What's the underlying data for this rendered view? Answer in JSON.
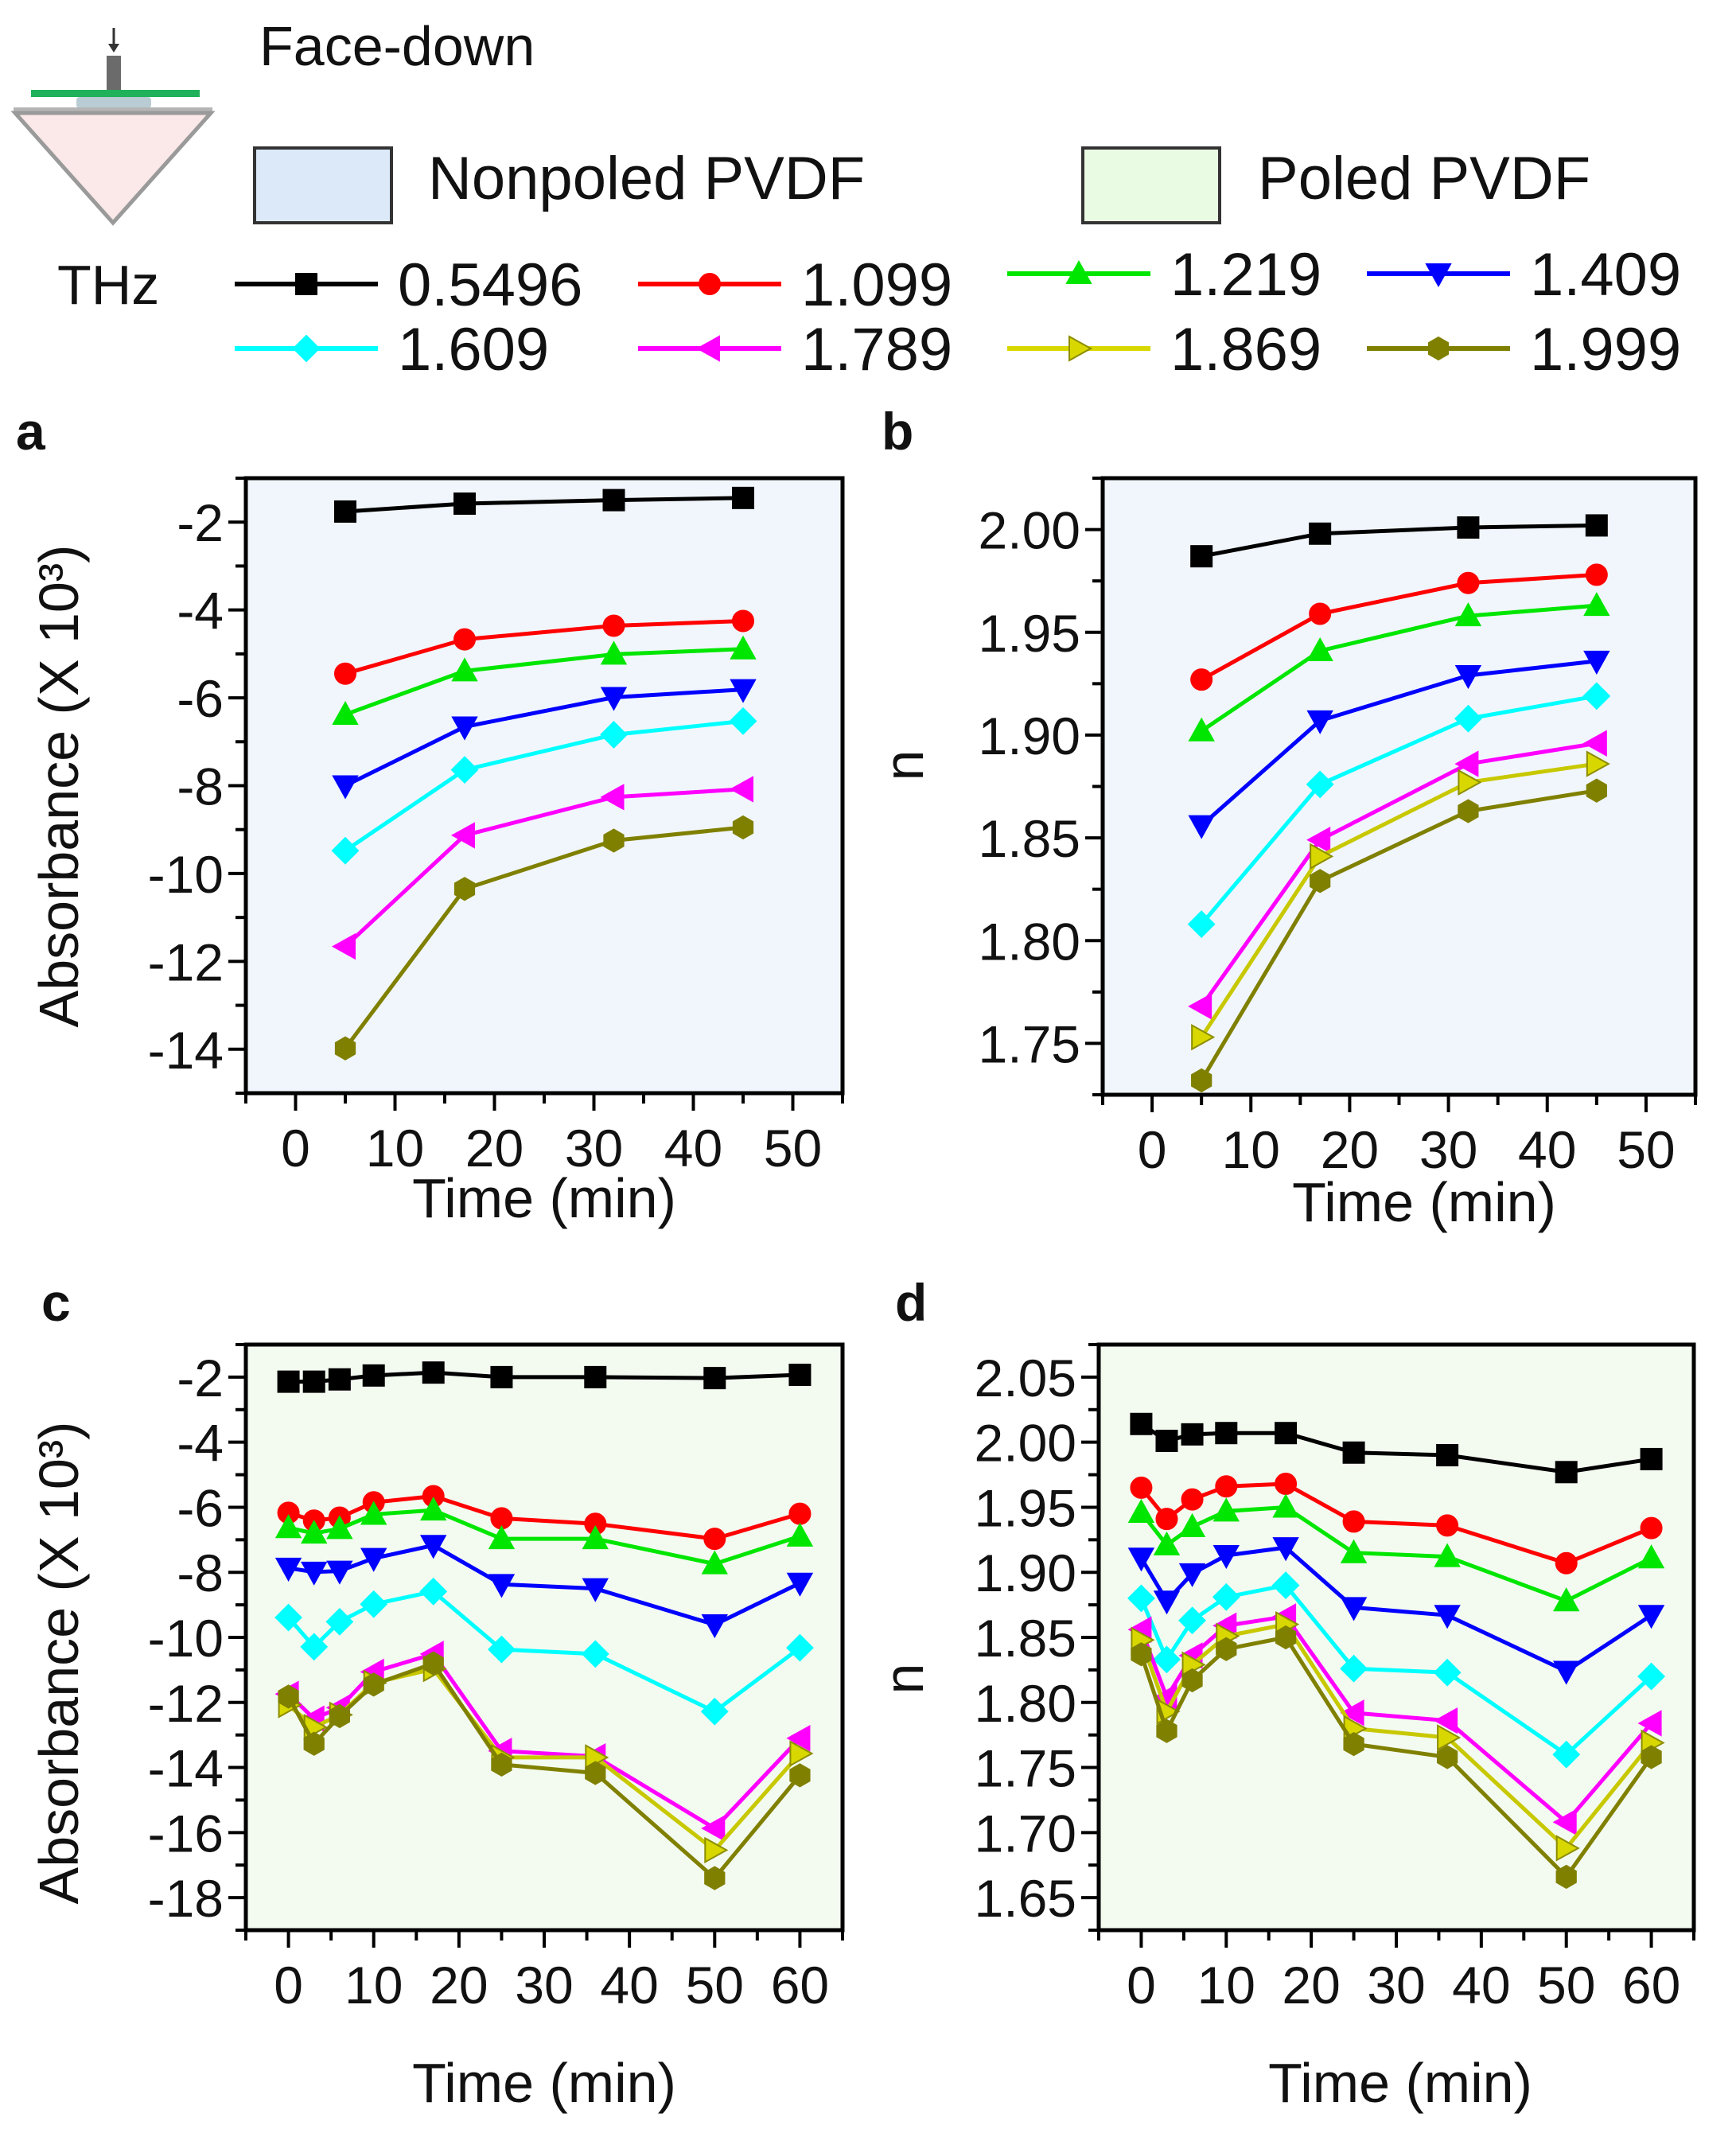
{
  "header": {
    "face_label": "Face-down",
    "unit_label": "THz"
  },
  "samples": [
    {
      "label": "Nonpoled PVDF",
      "color": "#dbe9f9"
    },
    {
      "label": "Poled PVDF",
      "color": "#eafbe4"
    }
  ],
  "legend": [
    {
      "name": "0.5496",
      "color": "#000000",
      "marker": "square"
    },
    {
      "name": "1.099",
      "color": "#ff0000",
      "marker": "circle"
    },
    {
      "name": "1.219",
      "color": "#00e600",
      "marker": "triangle-up"
    },
    {
      "name": "1.409",
      "color": "#0000ff",
      "marker": "triangle-down"
    },
    {
      "name": "1.609",
      "color": "#00ffff",
      "marker": "diamond"
    },
    {
      "name": "1.789",
      "color": "#ff00ff",
      "marker": "triangle-left"
    },
    {
      "name": "1.869",
      "color": "#d8d800",
      "marker": "triangle-right"
    },
    {
      "name": "1.999",
      "color": "#808000",
      "marker": "hexagon"
    }
  ],
  "chart_data": [
    {
      "panel": "a",
      "type": "line",
      "sample": "Nonpoled PVDF",
      "background": "#f1f6fd",
      "xlabel": "Time (min)",
      "ylabel": "Absorbance (X 10³)",
      "xlim": [
        -5,
        55
      ],
      "ylim": [
        -15,
        -1
      ],
      "xticks": [
        0,
        10,
        20,
        30,
        40,
        50
      ],
      "xtick_labels": [
        "0",
        "10",
        "20",
        "30",
        "40",
        "50"
      ],
      "yticks": [
        -2,
        -4,
        -6,
        -8,
        -10,
        -12,
        -14
      ],
      "ytick_labels": [
        "-2",
        "-4",
        "-6",
        "-8",
        "-10",
        "-12",
        "-14"
      ],
      "grid": false,
      "x": [
        5,
        17,
        32,
        45
      ],
      "series": [
        {
          "name": "0.5496",
          "values": [
            -1.76,
            -1.58,
            -1.5,
            -1.45
          ]
        },
        {
          "name": "1.099",
          "values": [
            -5.45,
            -4.67,
            -4.36,
            -4.25
          ]
        },
        {
          "name": "1.219",
          "values": [
            -6.38,
            -5.39,
            -5.01,
            -4.89
          ]
        },
        {
          "name": "1.409",
          "values": [
            -8.0,
            -6.66,
            -5.99,
            -5.81
          ]
        },
        {
          "name": "1.609",
          "values": [
            -9.48,
            -7.64,
            -6.84,
            -6.53
          ]
        },
        {
          "name": "1.789",
          "values": [
            -11.66,
            -9.13,
            -8.26,
            -8.08
          ]
        },
        {
          "name": "1.999",
          "values": [
            -13.98,
            -10.35,
            -9.25,
            -8.95
          ]
        }
      ]
    },
    {
      "panel": "b",
      "type": "line",
      "sample": "Nonpoled PVDF",
      "background": "#f1f6fd",
      "xlabel": "Time (min)",
      "ylabel": "n",
      "xlim": [
        -5,
        55
      ],
      "ylim": [
        1.725,
        2.025
      ],
      "xticks": [
        0,
        10,
        20,
        30,
        40,
        50
      ],
      "xtick_labels": [
        "0",
        "10",
        "20",
        "30",
        "40",
        "50"
      ],
      "yticks": [
        1.75,
        1.8,
        1.85,
        1.9,
        1.95,
        2.0
      ],
      "ytick_labels": [
        "1.75",
        "1.80",
        "1.85",
        "1.90",
        "1.95",
        "2.00"
      ],
      "grid": false,
      "x": [
        5,
        17,
        32,
        45
      ],
      "series": [
        {
          "name": "0.5496",
          "values": [
            1.987,
            1.998,
            2.001,
            2.002
          ]
        },
        {
          "name": "1.099",
          "values": [
            1.927,
            1.959,
            1.974,
            1.978
          ]
        },
        {
          "name": "1.219",
          "values": [
            1.902,
            1.941,
            1.958,
            1.963
          ]
        },
        {
          "name": "1.409",
          "values": [
            1.856,
            1.907,
            1.929,
            1.936
          ]
        },
        {
          "name": "1.609",
          "values": [
            1.808,
            1.876,
            1.908,
            1.919
          ]
        },
        {
          "name": "1.789",
          "values": [
            1.768,
            1.849,
            1.886,
            1.896
          ]
        },
        {
          "name": "1.869",
          "values": [
            1.753,
            1.841,
            1.877,
            1.886
          ]
        },
        {
          "name": "1.999",
          "values": [
            1.732,
            1.829,
            1.863,
            1.873
          ]
        }
      ]
    },
    {
      "panel": "c",
      "type": "line",
      "sample": "Poled PVDF",
      "background": "#f3faf0",
      "xlabel": "Time (min)",
      "ylabel": "Absorbance (X 10³)",
      "xlim": [
        -5,
        65
      ],
      "ylim": [
        -19,
        -1
      ],
      "xticks": [
        0,
        10,
        20,
        30,
        40,
        50,
        60
      ],
      "xtick_labels": [
        "0",
        "10",
        "20",
        "30",
        "40",
        "50",
        "60"
      ],
      "yticks": [
        -2,
        -4,
        -6,
        -8,
        -10,
        -12,
        -14,
        -16,
        -18
      ],
      "ytick_labels": [
        "-2",
        "-4",
        "-6",
        "-8",
        "-10",
        "-12",
        "-14",
        "-16",
        "-18"
      ],
      "grid": false,
      "x": [
        0,
        3,
        6,
        10,
        17,
        25,
        36,
        50,
        60
      ],
      "series": [
        {
          "name": "0.5496",
          "values": [
            -2.14,
            -2.14,
            -2.07,
            -1.95,
            -1.86,
            -2.0,
            -2.0,
            -2.03,
            -1.93
          ]
        },
        {
          "name": "1.099",
          "values": [
            -6.17,
            -6.41,
            -6.32,
            -5.85,
            -5.66,
            -6.34,
            -6.51,
            -6.97,
            -6.2
          ]
        },
        {
          "name": "1.219",
          "values": [
            -6.63,
            -6.8,
            -6.66,
            -6.22,
            -6.09,
            -6.97,
            -6.97,
            -7.74,
            -6.89
          ]
        },
        {
          "name": "1.409",
          "values": [
            -7.87,
            -7.99,
            -7.96,
            -7.57,
            -7.17,
            -8.37,
            -8.5,
            -9.61,
            -8.33
          ]
        },
        {
          "name": "1.609",
          "values": [
            -9.39,
            -10.29,
            -9.52,
            -8.98,
            -8.59,
            -10.37,
            -10.51,
            -12.28,
            -10.32
          ]
        },
        {
          "name": "1.789",
          "values": [
            -11.74,
            -12.5,
            -12.16,
            -11.06,
            -10.51,
            -13.49,
            -13.66,
            -15.87,
            -13.1
          ]
        },
        {
          "name": "1.869",
          "values": [
            -12.08,
            -12.76,
            -12.38,
            -11.4,
            -10.97,
            -13.69,
            -13.69,
            -16.54,
            -13.57
          ]
        },
        {
          "name": "1.999",
          "values": [
            -11.82,
            -13.27,
            -12.42,
            -11.45,
            -10.8,
            -13.91,
            -14.17,
            -17.4,
            -14.24
          ]
        }
      ]
    },
    {
      "panel": "d",
      "type": "line",
      "sample": "Poled PVDF",
      "background": "#f3faf0",
      "xlabel": "Time (min)",
      "ylabel": "n",
      "xlim": [
        -5,
        65
      ],
      "ylim": [
        1.625,
        2.075
      ],
      "xticks": [
        0,
        10,
        20,
        30,
        40,
        50,
        60
      ],
      "xtick_labels": [
        "0",
        "10",
        "20",
        "30",
        "40",
        "50",
        "60"
      ],
      "yticks": [
        1.65,
        1.7,
        1.75,
        1.8,
        1.85,
        1.9,
        1.95,
        2.0,
        2.05
      ],
      "ytick_labels": [
        "1.65",
        "1.70",
        "1.75",
        "1.80",
        "1.85",
        "1.90",
        "1.95",
        "2.00",
        "2.05"
      ],
      "grid": false,
      "x": [
        0,
        3,
        6,
        10,
        17,
        25,
        36,
        50,
        60
      ],
      "series": [
        {
          "name": "0.5496",
          "values": [
            2.014,
            2.001,
            2.006,
            2.007,
            2.007,
            1.992,
            1.99,
            1.977,
            1.987
          ]
        },
        {
          "name": "1.099",
          "values": [
            1.965,
            1.941,
            1.956,
            1.966,
            1.968,
            1.939,
            1.936,
            1.907,
            1.934
          ]
        },
        {
          "name": "1.219",
          "values": [
            1.946,
            1.921,
            1.935,
            1.947,
            1.95,
            1.915,
            1.912,
            1.878,
            1.911
          ]
        },
        {
          "name": "1.409",
          "values": [
            1.911,
            1.878,
            1.899,
            1.913,
            1.919,
            1.873,
            1.867,
            1.824,
            1.867
          ]
        },
        {
          "name": "1.609",
          "values": [
            1.88,
            1.833,
            1.863,
            1.881,
            1.89,
            1.826,
            1.823,
            1.76,
            1.82
          ]
        },
        {
          "name": "1.789",
          "values": [
            1.856,
            1.804,
            1.836,
            1.859,
            1.866,
            1.792,
            1.786,
            1.708,
            1.784
          ]
        },
        {
          "name": "1.869",
          "values": [
            1.848,
            1.793,
            1.829,
            1.851,
            1.86,
            1.78,
            1.773,
            1.688,
            1.769
          ]
        },
        {
          "name": "1.999",
          "values": [
            1.837,
            1.778,
            1.817,
            1.841,
            1.85,
            1.768,
            1.758,
            1.666,
            1.758
          ]
        }
      ]
    }
  ]
}
